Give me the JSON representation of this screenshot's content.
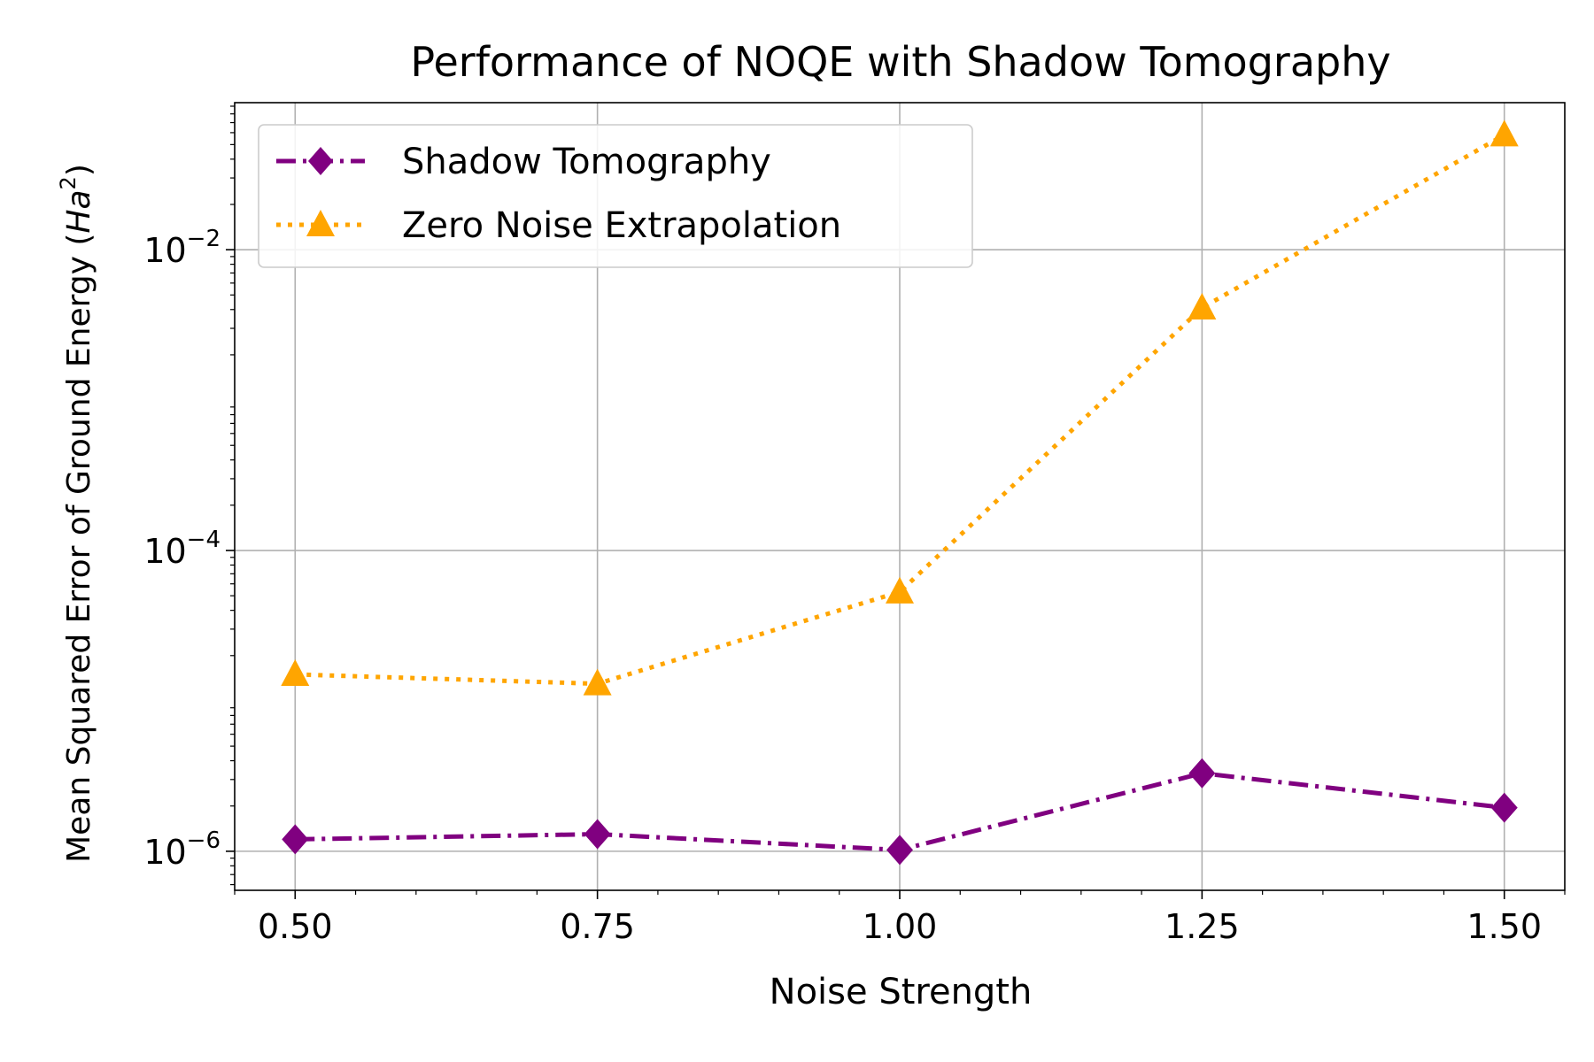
{
  "chart_data": {
    "type": "line",
    "title": "Performance of NOQE with Shadow Tomography",
    "xlabel": "Noise Strength",
    "ylabel": "Mean Squared Error of Ground Energy",
    "ylabel_unit_base": "Ha",
    "ylabel_unit_exp": "2",
    "xscale": "linear",
    "yscale": "log",
    "xlim": [
      0.45,
      1.55
    ],
    "ylim": [
      5.5e-07,
      0.095
    ],
    "grid": true,
    "legend_position": "upper-left",
    "x": [
      0.5,
      0.75,
      1.0,
      1.25,
      1.5
    ],
    "x_tick_values": [
      0.5,
      0.75,
      1.0,
      1.25,
      1.5
    ],
    "x_tick_labels": [
      "0.50",
      "0.75",
      "1.00",
      "1.25",
      "1.50"
    ],
    "y_major_ticks": [
      {
        "value": 1e-06,
        "base": "10",
        "exp": "−6"
      },
      {
        "value": 0.0001,
        "base": "10",
        "exp": "−4"
      },
      {
        "value": 0.01,
        "base": "10",
        "exp": "−2"
      }
    ],
    "series": [
      {
        "name": "Shadow Tomography",
        "values": [
          1.2e-06,
          1.3e-06,
          1.02e-06,
          3.3e-06,
          1.95e-06
        ],
        "color": "#800080",
        "linestyle": "dashdot",
        "marker": "diamond"
      },
      {
        "name": "Zero Noise Extrapolation",
        "values": [
          1.5e-05,
          1.3e-05,
          5.3e-05,
          0.0041,
          0.058
        ],
        "color": "#FFA500",
        "linestyle": "dotted",
        "marker": "triangle-up"
      }
    ]
  }
}
